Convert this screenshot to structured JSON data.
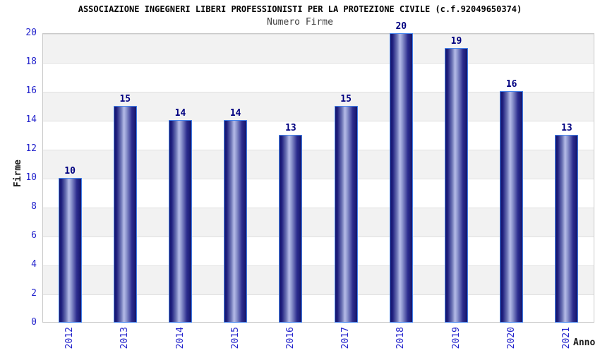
{
  "chart_data": {
    "type": "bar",
    "title": "ASSOCIAZIONE INGEGNERI LIBERI PROFESSIONISTI PER LA PROTEZIONE CIVILE (c.f.92049650374)",
    "subtitle": "Numero Firme",
    "categories": [
      "2012",
      "2013",
      "2014",
      "2015",
      "2016",
      "2017",
      "2018",
      "2019",
      "2020",
      "2021"
    ],
    "values": [
      10,
      15,
      14,
      14,
      13,
      15,
      20,
      19,
      16,
      13
    ],
    "xlabel": "Anno",
    "ylabel": "Firme",
    "ylim": [
      0,
      20
    ],
    "ytick_step": 2,
    "value_labels_shown": true,
    "grid": "horizontal",
    "background_bands": "alternating gray/white every 2 units, gray at top band",
    "legend": "none",
    "colors": {
      "bar_dark": "#15156a",
      "bar_highlight": "#b6bce8",
      "bar_border": "#4585ee",
      "tick_label": "#2222cc",
      "value_label": "#000080",
      "band_gray": "#f2f2f2",
      "gridline": "#e0e0e0",
      "plot_border": "#c9c9c9",
      "axis_title": "#1a1a1a",
      "subtitle": "#404040",
      "title": "#000000"
    }
  }
}
